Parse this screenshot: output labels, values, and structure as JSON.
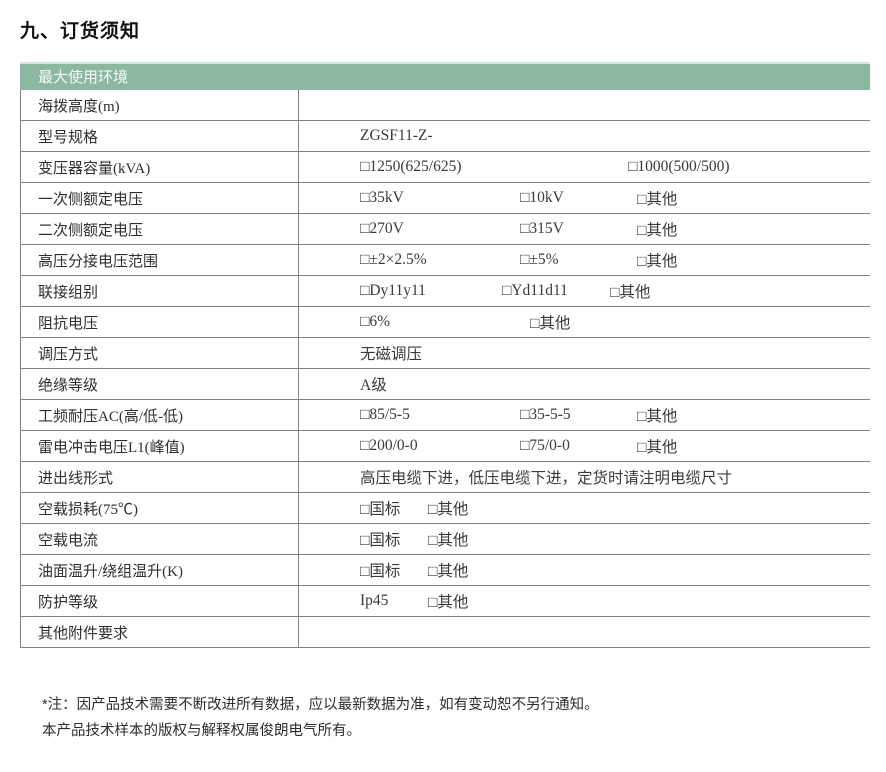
{
  "page": {
    "title": "九、订货须知"
  },
  "table": {
    "header": "最大使用环境",
    "rows": [
      {
        "id": "altitude",
        "label": "海拨高度(m)",
        "value": ""
      },
      {
        "id": "model",
        "label": "型号规格",
        "value": "ZGSF11-Z-"
      },
      {
        "id": "capacity",
        "label": "变压器容量(kVA)",
        "options": [
          "□1250(625/625)",
          "□1000(500/500)"
        ]
      },
      {
        "id": "primary-voltage",
        "label": "一次侧额定电压",
        "options": [
          "□35kV",
          "□10kV",
          "□其他"
        ]
      },
      {
        "id": "secondary-voltage",
        "label": "二次侧额定电压",
        "options": [
          "□270V",
          "□315V",
          "□其他"
        ]
      },
      {
        "id": "tap-range",
        "label": "高压分接电压范围",
        "options": [
          "□±2×2.5%",
          "□±5%",
          "□其他"
        ]
      },
      {
        "id": "connection",
        "label": "联接组别",
        "options": [
          "□Dy11y11",
          "□Yd11d11",
          "□其他"
        ]
      },
      {
        "id": "impedance",
        "label": "阻抗电压",
        "options": [
          "□6%",
          "□其他"
        ]
      },
      {
        "id": "regulation",
        "label": "调压方式",
        "value": "无磁调压"
      },
      {
        "id": "insulation",
        "label": "绝缘等级",
        "value": "A级"
      },
      {
        "id": "power-freq-withstand",
        "label": "工频耐压AC(高/低-低)",
        "options": [
          "□85/5-5",
          "□35-5-5",
          "□其他"
        ]
      },
      {
        "id": "lightning-impulse",
        "label": "雷电冲击电压L1(峰值)",
        "options": [
          "□200/0-0",
          "□75/0-0",
          "□其他"
        ]
      },
      {
        "id": "lead-style",
        "label": "进出线形式",
        "value": "高压电缆下进，低压电缆下进，定货时请注明电缆尺寸"
      },
      {
        "id": "noload-loss",
        "label": "空载损耗(75℃)",
        "options": [
          "□国标",
          "□其他"
        ]
      },
      {
        "id": "noload-current",
        "label": "空载电流",
        "options": [
          "□国标",
          "□其他"
        ]
      },
      {
        "id": "temp-rise",
        "label": "油面温升/绕组温升(K)",
        "options": [
          "□国标",
          "□其他"
        ]
      },
      {
        "id": "protection",
        "label": "防护等级",
        "options": [
          "Ip45",
          "□其他"
        ]
      },
      {
        "id": "other-accessories",
        "label": "其他附件要求",
        "value": ""
      }
    ]
  },
  "notes": {
    "line1": "*注：因产品技术需要不断改进所有数据，应以最新数据为准，如有变动恕不另行通知。",
    "line2": "本产品技术样本的版权与解释权属俊朗电气所有。"
  },
  "colors": {
    "header_bg": "#8cb7a1",
    "header_text": "#f7faf8",
    "line": "#828282",
    "label_text": "#2f2f2f",
    "value_text": "#3a3a3a"
  }
}
